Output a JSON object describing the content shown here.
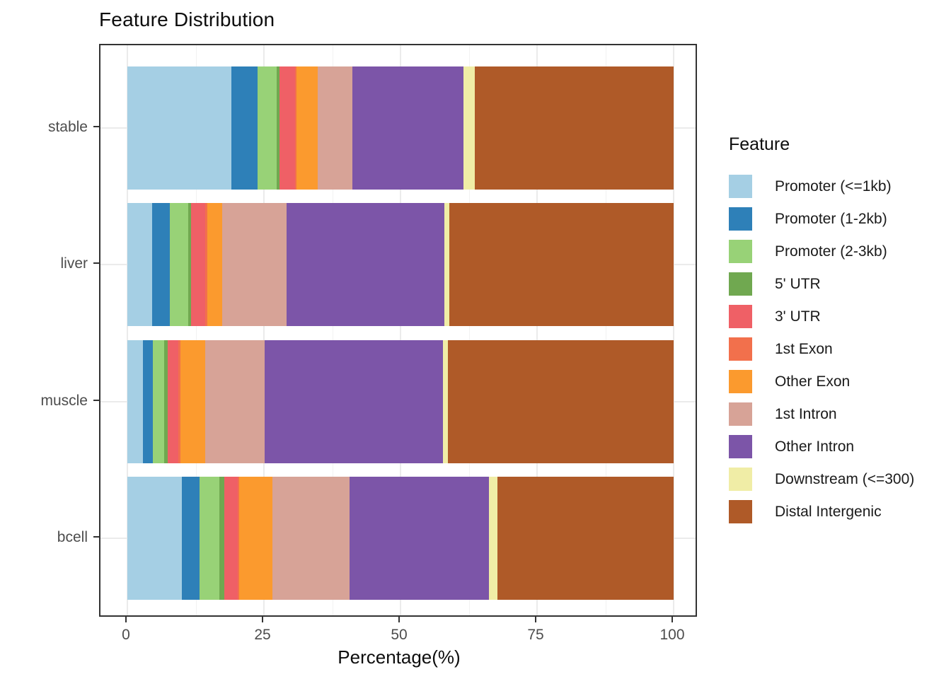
{
  "title": "Feature Distribution",
  "legend_title": "Feature",
  "x_axis_title": "Percentage(%)",
  "chart_data": {
    "type": "bar",
    "orientation": "horizontal_stacked",
    "categories": [
      "stable",
      "liver",
      "muscle",
      "bcell"
    ],
    "x_ticks": [
      0,
      25,
      50,
      75,
      100
    ],
    "xlim": [
      0,
      100
    ],
    "xlabel": "Percentage(%)",
    "ylabel": "",
    "grid": "on",
    "legend_position": "right",
    "series": [
      {
        "name": "Promoter (<=1kb)",
        "color": "#a5cfe4",
        "values": [
          19.0,
          4.5,
          2.8,
          10.0
        ]
      },
      {
        "name": "Promoter (1-2kb)",
        "color": "#2e80b8",
        "values": [
          4.9,
          3.3,
          1.9,
          3.2
        ]
      },
      {
        "name": "Promoter (2-3kb)",
        "color": "#98d277",
        "values": [
          3.4,
          3.3,
          2.1,
          3.6
        ]
      },
      {
        "name": "5' UTR",
        "color": "#70a850",
        "values": [
          0.5,
          0.6,
          0.6,
          1.0
        ]
      },
      {
        "name": "3' UTR",
        "color": "#ef6066",
        "values": [
          2.9,
          2.5,
          1.9,
          2.4
        ]
      },
      {
        "name": "1st Exon",
        "color": "#f2704c",
        "values": [
          0.3,
          0.4,
          0.4,
          0.3
        ]
      },
      {
        "name": "Other Exon",
        "color": "#fb9a2e",
        "values": [
          3.9,
          2.8,
          4.6,
          6.0
        ]
      },
      {
        "name": "1st Intron",
        "color": "#d7a397",
        "values": [
          6.3,
          11.8,
          10.9,
          14.2
        ]
      },
      {
        "name": "Other Intron",
        "color": "#7c55a8",
        "values": [
          20.3,
          28.9,
          32.6,
          25.5
        ]
      },
      {
        "name": "Downstream (<=300)",
        "color": "#f0eda6",
        "values": [
          2.1,
          0.8,
          0.9,
          1.5
        ]
      },
      {
        "name": "Distal Intergenic",
        "color": "#af5a28",
        "values": [
          36.4,
          41.1,
          41.3,
          32.3
        ]
      }
    ]
  },
  "layout_colors": {
    "panel_border": "#333333",
    "grid_major": "#ebebeb",
    "axis_text": "#4d4d4d"
  }
}
